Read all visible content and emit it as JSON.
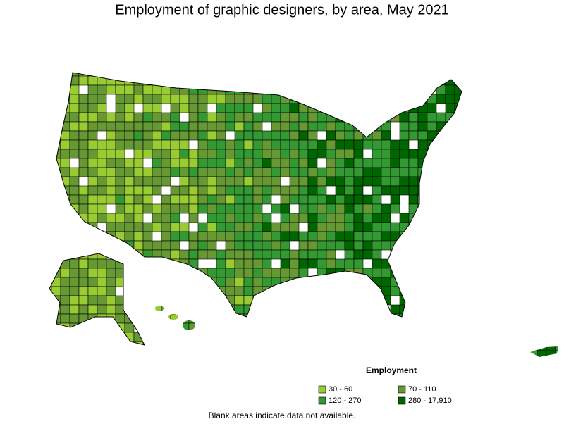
{
  "title": "Employment of graphic designers, by area, May 2021",
  "legend": {
    "title": "Employment",
    "items": [
      {
        "label": "30 - 60",
        "color": "#99cc33"
      },
      {
        "label": "70 - 110",
        "color": "#669933"
      },
      {
        "label": "120 - 270",
        "color": "#339933"
      },
      {
        "label": "280 - 17,910",
        "color": "#006600"
      }
    ]
  },
  "note": "Blank areas indicate data not available."
}
